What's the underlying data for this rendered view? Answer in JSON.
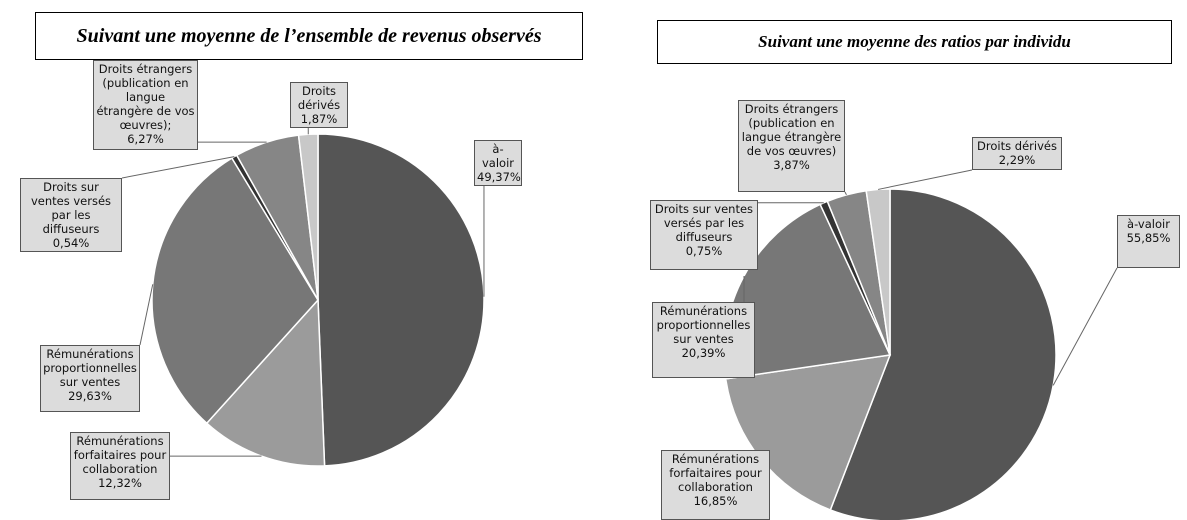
{
  "chart_data": [
    {
      "type": "pie",
      "title": "Suivant une moyenne de l’ensemble de revenus observés",
      "categories": [
        "à-valoir",
        "Rémunérations forfaitaires pour collaboration",
        "Rémunérations proportionnelles sur ventes",
        "Droits sur ventes versés par les diffuseurs",
        "Droits étrangers (publication en langue étrangère de vos œuvres);",
        "Droits dérivés"
      ],
      "values": [
        49.37,
        12.32,
        29.63,
        0.54,
        6.27,
        1.87
      ],
      "value_labels": [
        "49,37%",
        "12,32%",
        "29,63%",
        "0,54%",
        "6,27%",
        "1,87%"
      ],
      "colors": [
        "#555555",
        "#9b9b9b",
        "#777777",
        "#333333",
        "#868686",
        "#c8c8c8"
      ]
    },
    {
      "type": "pie",
      "title": "Suivant une moyenne des ratios par individu",
      "categories": [
        "à-valoir",
        "Rémunérations forfaitaires pour collaboration",
        "Rémunérations proportionnelles sur ventes",
        "Droits sur ventes versés par les diffuseurs",
        "Droits étrangers (publication en langue étrangère de vos œuvres)",
        "Droits dérivés"
      ],
      "values": [
        55.85,
        16.85,
        20.39,
        0.75,
        3.87,
        2.29
      ],
      "value_labels": [
        "55,85%",
        "16,85%",
        "20,39%",
        "0,75%",
        "3,87%",
        "2,29%"
      ],
      "colors": [
        "#555555",
        "#9b9b9b",
        "#777777",
        "#333333",
        "#868686",
        "#c8c8c8"
      ]
    }
  ]
}
